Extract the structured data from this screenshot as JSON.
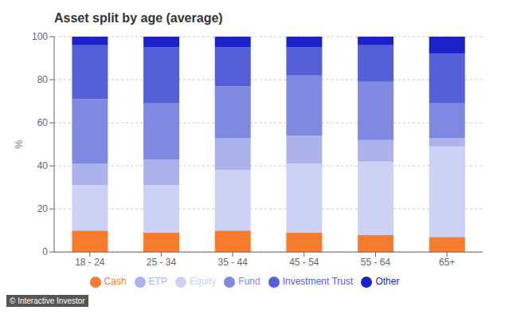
{
  "chart_data": {
    "type": "bar",
    "stacked": true,
    "title": "Asset split by age (average)",
    "categories": [
      "18 - 24",
      "25 - 34",
      "35 - 44",
      "45 - 54",
      "55 - 64",
      "65+"
    ],
    "series": [
      {
        "name": "Cash",
        "color": "#f97b2e",
        "values": [
          10,
          9,
          10,
          9,
          8,
          7
        ]
      },
      {
        "name": "Equity",
        "color": "#cdd1f3",
        "values": [
          21,
          22,
          28,
          32,
          34,
          42
        ]
      },
      {
        "name": "ETP",
        "color": "#adb3ea",
        "values": [
          10,
          12,
          15,
          13,
          10,
          4
        ]
      },
      {
        "name": "Fund",
        "color": "#8089e0",
        "values": [
          30,
          26,
          24,
          28,
          27,
          16
        ]
      },
      {
        "name": "Investment Trust",
        "color": "#5560d8",
        "values": [
          25,
          26,
          18,
          13,
          17,
          23
        ]
      },
      {
        "name": "Other",
        "color": "#1a22c8",
        "values": [
          4,
          5,
          5,
          5,
          4,
          8
        ]
      }
    ],
    "ylabel": "%",
    "ylim": [
      0,
      100
    ],
    "yticks": [
      0,
      20,
      40,
      60,
      80,
      100
    ],
    "grid": true,
    "legend": "bottom",
    "annotations": [
      "© Interactive Investor"
    ]
  }
}
